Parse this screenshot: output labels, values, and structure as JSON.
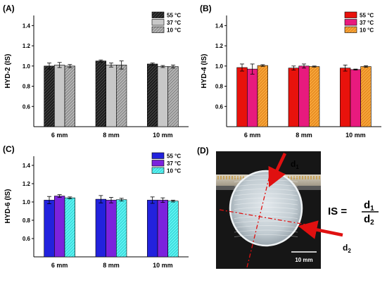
{
  "chart_data": [
    {
      "panel": "(A)",
      "type": "bar",
      "ylabel": "HYD-2 (IS)",
      "ylim": [
        0.4,
        1.5
      ],
      "yticks": [
        0.6,
        0.8,
        1.0,
        1.2,
        1.4
      ],
      "categories": [
        "6 mm",
        "8 mm",
        "10 mm"
      ],
      "legend_position": "top-right",
      "series": [
        {
          "name": "55 °C",
          "color": "#1a1a1a",
          "pattern": "hatch-dark",
          "values": [
            1.0,
            1.05,
            1.02
          ],
          "errors": [
            0.03,
            0.01,
            0.01
          ]
        },
        {
          "name": "37 °C",
          "color": "#c8c8c8",
          "pattern": "solid",
          "values": [
            1.01,
            1.01,
            0.995
          ],
          "errors": [
            0.025,
            0.02,
            0.01
          ]
        },
        {
          "name": "10 °C",
          "color": "#8a8a8a",
          "pattern": "hatch-gray",
          "values": [
            1.0,
            1.01,
            0.995
          ],
          "errors": [
            0.015,
            0.04,
            0.015
          ]
        }
      ]
    },
    {
      "panel": "(B)",
      "type": "bar",
      "ylabel": "HYD-4 (IS)",
      "ylim": [
        0.4,
        1.5
      ],
      "yticks": [
        0.6,
        0.8,
        1.0,
        1.2,
        1.4
      ],
      "categories": [
        "6 mm",
        "8 mm",
        "10 mm"
      ],
      "legend_position": "top-right",
      "series": [
        {
          "name": "55 °C",
          "color": "#e8120c",
          "pattern": "solid",
          "values": [
            0.985,
            0.98,
            0.98
          ],
          "errors": [
            0.035,
            0.02,
            0.03
          ]
        },
        {
          "name": "37 °C",
          "color": "#e81a7e",
          "pattern": "solid",
          "values": [
            0.97,
            1.0,
            0.965
          ],
          "errors": [
            0.05,
            0.02,
            0.005
          ]
        },
        {
          "name": "10 °C",
          "color": "#f08c14",
          "pattern": "hatch-orange",
          "values": [
            1.005,
            0.995,
            0.995
          ],
          "errors": [
            0.008,
            0.005,
            0.008
          ]
        }
      ]
    },
    {
      "panel": "(C)",
      "type": "bar",
      "ylabel": "HYD-6 (IS)",
      "ylim": [
        0.4,
        1.5
      ],
      "yticks": [
        0.6,
        0.8,
        1.0,
        1.2,
        1.4
      ],
      "categories": [
        "6 mm",
        "8 mm",
        "10 mm"
      ],
      "legend_position": "top-right",
      "series": [
        {
          "name": "55 °C",
          "color": "#2222dd",
          "pattern": "solid",
          "values": [
            1.02,
            1.03,
            1.02
          ],
          "errors": [
            0.04,
            0.04,
            0.035
          ]
        },
        {
          "name": "37 °C",
          "color": "#7b22dd",
          "pattern": "solid",
          "values": [
            1.065,
            1.02,
            1.02
          ],
          "errors": [
            0.015,
            0.03,
            0.025
          ]
        },
        {
          "name": "10 °C",
          "color": "#28e6e6",
          "pattern": "hatch-cyan",
          "values": [
            1.045,
            1.025,
            1.01
          ],
          "errors": [
            0.01,
            0.015,
            0.01
          ]
        }
      ]
    }
  ],
  "photo": {
    "panel": "(D)",
    "d1": "d",
    "d1_sub": "1",
    "d2": "d",
    "d2_sub": "2",
    "formula_lhs": "IS =",
    "formula_num": "d",
    "formula_num_sub": "1",
    "formula_den": "d",
    "formula_den_sub": "2",
    "scale_bar": "10 mm",
    "colors": {
      "arrow": "#e01010",
      "background": "#161616",
      "sample": "#cfd8dc"
    }
  }
}
